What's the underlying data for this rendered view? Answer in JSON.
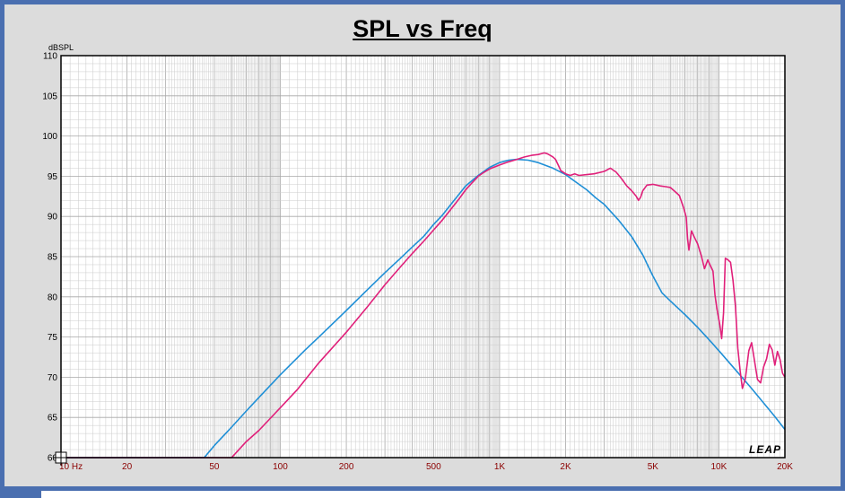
{
  "window": {
    "frame_color": "#4a6fb0",
    "panel_color": "#dcdcdc"
  },
  "chart_data": {
    "type": "line",
    "title": "SPL vs Freq",
    "ylabel": "dBSPL",
    "xlabel": "",
    "x_scale": "log",
    "xlim": [
      10,
      20000
    ],
    "ylim": [
      60,
      110
    ],
    "grid": true,
    "y_ticks": [
      60,
      65,
      70,
      75,
      80,
      85,
      90,
      95,
      100,
      105,
      110
    ],
    "y_tick_labels": [
      "60",
      "65",
      "70",
      "75",
      "80",
      "85",
      "90",
      "95",
      "100",
      "105",
      "110"
    ],
    "x_ticks": [
      10,
      20,
      50,
      100,
      200,
      500,
      1000,
      2000,
      5000,
      10000,
      20000
    ],
    "x_tick_labels": [
      "10 Hz",
      "20",
      "50",
      "100",
      "200",
      "500",
      "1K",
      "2K",
      "5K",
      "10K",
      "20K"
    ],
    "logo_text": "LEAP",
    "series": [
      {
        "color": "#1f8fd6",
        "points": [
          [
            10,
            60
          ],
          [
            45,
            60
          ],
          [
            50,
            61.5
          ],
          [
            60,
            63.8
          ],
          [
            70,
            65.8
          ],
          [
            80,
            67.5
          ],
          [
            100,
            70.3
          ],
          [
            130,
            73.4
          ],
          [
            150,
            75
          ],
          [
            200,
            78.3
          ],
          [
            250,
            80.9
          ],
          [
            300,
            83
          ],
          [
            350,
            84.7
          ],
          [
            400,
            86.2
          ],
          [
            450,
            87.5
          ],
          [
            500,
            89
          ],
          [
            550,
            90.2
          ],
          [
            600,
            91.5
          ],
          [
            700,
            93.8
          ],
          [
            800,
            95.1
          ],
          [
            900,
            96.1
          ],
          [
            1000,
            96.7
          ],
          [
            1100,
            97
          ],
          [
            1200,
            97.1
          ],
          [
            1350,
            97
          ],
          [
            1500,
            96.7
          ],
          [
            1750,
            96
          ],
          [
            2000,
            95.2
          ],
          [
            2250,
            94.2
          ],
          [
            2500,
            93.3
          ],
          [
            2750,
            92.3
          ],
          [
            3000,
            91.5
          ],
          [
            3500,
            89.5
          ],
          [
            4000,
            87.5
          ],
          [
            4500,
            85.2
          ],
          [
            5000,
            82.6
          ],
          [
            5500,
            80.5
          ],
          [
            6000,
            79.5
          ],
          [
            7000,
            77.8
          ],
          [
            8000,
            76.2
          ],
          [
            9000,
            74.7
          ],
          [
            10000,
            73.3
          ],
          [
            12000,
            70.8
          ],
          [
            14000,
            68.7
          ],
          [
            16000,
            66.8
          ],
          [
            18000,
            65.1
          ],
          [
            20000,
            63.5
          ]
        ]
      },
      {
        "color": "#e0207a",
        "points": [
          [
            10,
            60
          ],
          [
            60,
            60
          ],
          [
            70,
            62
          ],
          [
            80,
            63.4
          ],
          [
            100,
            66.2
          ],
          [
            120,
            68.5
          ],
          [
            150,
            71.8
          ],
          [
            200,
            75.6
          ],
          [
            250,
            78.8
          ],
          [
            300,
            81.5
          ],
          [
            350,
            83.6
          ],
          [
            400,
            85.4
          ],
          [
            450,
            86.9
          ],
          [
            500,
            88.3
          ],
          [
            550,
            89.6
          ],
          [
            600,
            90.9
          ],
          [
            650,
            92.1
          ],
          [
            700,
            93.3
          ],
          [
            750,
            94.2
          ],
          [
            800,
            95
          ],
          [
            850,
            95.5
          ],
          [
            900,
            95.9
          ],
          [
            1000,
            96.4
          ],
          [
            1100,
            96.8
          ],
          [
            1200,
            97.1
          ],
          [
            1300,
            97.4
          ],
          [
            1400,
            97.6
          ],
          [
            1500,
            97.7
          ],
          [
            1600,
            97.9
          ],
          [
            1650,
            97.8
          ],
          [
            1700,
            97.6
          ],
          [
            1750,
            97.4
          ],
          [
            1800,
            97.1
          ],
          [
            1850,
            96.4
          ],
          [
            1900,
            95.7
          ],
          [
            2000,
            95.3
          ],
          [
            2100,
            95.1
          ],
          [
            2200,
            95.3
          ],
          [
            2300,
            95.1
          ],
          [
            2500,
            95.2
          ],
          [
            2700,
            95.3
          ],
          [
            3000,
            95.6
          ],
          [
            3200,
            96
          ],
          [
            3400,
            95.5
          ],
          [
            3600,
            94.7
          ],
          [
            3800,
            93.8
          ],
          [
            4000,
            93.2
          ],
          [
            4200,
            92.5
          ],
          [
            4300,
            92
          ],
          [
            4400,
            92.4
          ],
          [
            4500,
            93.2
          ],
          [
            4700,
            93.9
          ],
          [
            5000,
            94
          ],
          [
            5400,
            93.8
          ],
          [
            5700,
            93.7
          ],
          [
            6000,
            93.6
          ],
          [
            6300,
            93.1
          ],
          [
            6600,
            92.6
          ],
          [
            6900,
            91.1
          ],
          [
            7100,
            89.9
          ],
          [
            7200,
            87.2
          ],
          [
            7300,
            85.8
          ],
          [
            7500,
            88.2
          ],
          [
            7700,
            87.5
          ],
          [
            8000,
            86.6
          ],
          [
            8300,
            85.2
          ],
          [
            8600,
            83.5
          ],
          [
            8900,
            84.6
          ],
          [
            9100,
            84
          ],
          [
            9400,
            83.2
          ],
          [
            9600,
            80.2
          ],
          [
            9800,
            78.5
          ],
          [
            10100,
            76.5
          ],
          [
            10300,
            74.8
          ],
          [
            10500,
            78
          ],
          [
            10700,
            84.8
          ],
          [
            11000,
            84.6
          ],
          [
            11300,
            84.3
          ],
          [
            11600,
            82
          ],
          [
            11900,
            78.8
          ],
          [
            12200,
            73.6
          ],
          [
            12500,
            70.8
          ],
          [
            12800,
            68.6
          ],
          [
            13200,
            69.8
          ],
          [
            13700,
            73.3
          ],
          [
            14100,
            74.3
          ],
          [
            14500,
            72.2
          ],
          [
            15000,
            69.7
          ],
          [
            15500,
            69.3
          ],
          [
            16000,
            71.3
          ],
          [
            16500,
            72.3
          ],
          [
            17000,
            74.1
          ],
          [
            17500,
            73.4
          ],
          [
            18000,
            71.5
          ],
          [
            18500,
            73.2
          ],
          [
            19000,
            72.2
          ],
          [
            19500,
            70.5
          ],
          [
            20000,
            70
          ]
        ]
      }
    ]
  }
}
